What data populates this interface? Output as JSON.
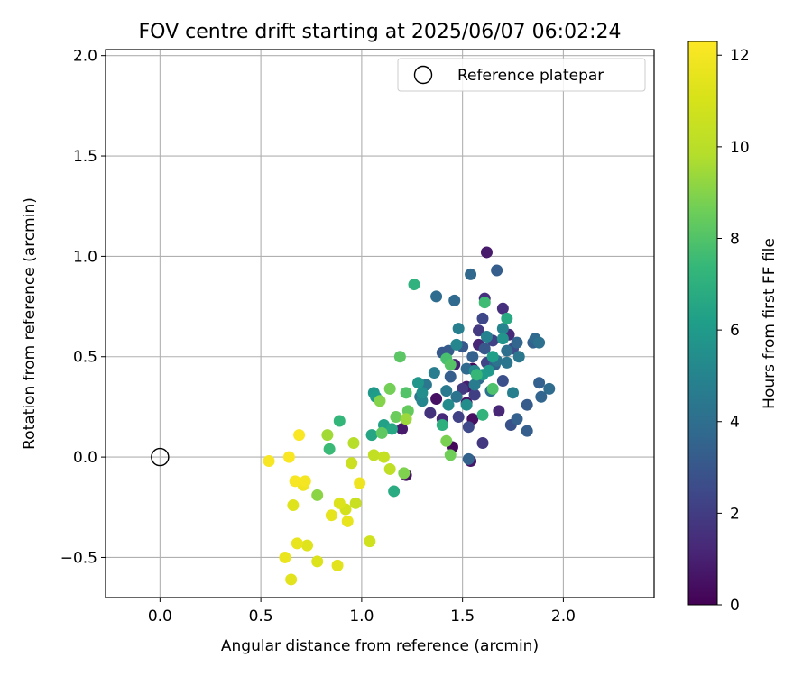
{
  "chart_data": {
    "type": "scatter",
    "title": "FOV centre drift starting at 2025/06/07 06:02:24",
    "xlabel": "Angular distance from reference (arcmin)",
    "ylabel": "Rotation from reference (arcmin)",
    "xlim": [
      -0.27,
      2.45
    ],
    "ylim": [
      -0.7,
      2.03
    ],
    "x_ticks": [
      0.0,
      0.5,
      1.0,
      1.5,
      2.0
    ],
    "x_tick_labels": [
      "0.0",
      "0.5",
      "1.0",
      "1.5",
      "2.0"
    ],
    "y_ticks": [
      -0.5,
      0.0,
      0.5,
      1.0,
      1.5,
      2.0
    ],
    "y_tick_labels": [
      "−0.5",
      "0.0",
      "0.5",
      "1.0",
      "1.5",
      "2.0"
    ],
    "grid": true,
    "colormap": "viridis",
    "colorbar": {
      "label": "Hours from first FF file",
      "range": [
        0,
        12.3
      ],
      "ticks": [
        0,
        2,
        4,
        6,
        8,
        10,
        12
      ],
      "tick_labels": [
        "0",
        "2",
        "4",
        "6",
        "8",
        "10",
        "12"
      ]
    },
    "legend": {
      "position": "top-right",
      "entries": [
        "Reference platepar"
      ]
    },
    "reference_point": {
      "x": 0.0,
      "y": 0.0
    },
    "points": [
      {
        "x": 1.62,
        "y": 1.02,
        "h": 0.8
      },
      {
        "x": 1.61,
        "y": 0.79,
        "h": 1.5
      },
      {
        "x": 1.58,
        "y": 0.56,
        "h": 1.2
      },
      {
        "x": 1.55,
        "y": 0.44,
        "h": 0.3
      },
      {
        "x": 1.45,
        "y": 0.05,
        "h": 0.2
      },
      {
        "x": 1.37,
        "y": 0.29,
        "h": 0.5
      },
      {
        "x": 1.52,
        "y": 0.27,
        "h": 0.6
      },
      {
        "x": 1.46,
        "y": 0.46,
        "h": 1.0
      },
      {
        "x": 1.7,
        "y": 0.74,
        "h": 1.5
      },
      {
        "x": 1.73,
        "y": 0.61,
        "h": 1.3
      },
      {
        "x": 1.52,
        "y": 0.35,
        "h": 0.9
      },
      {
        "x": 1.55,
        "y": 0.19,
        "h": 0.5
      },
      {
        "x": 1.54,
        "y": -0.02,
        "h": 0.7
      },
      {
        "x": 1.2,
        "y": 0.14,
        "h": 0.8
      },
      {
        "x": 1.22,
        "y": -0.09,
        "h": 0.4
      },
      {
        "x": 1.68,
        "y": 0.23,
        "h": 1.2
      },
      {
        "x": 1.6,
        "y": 0.07,
        "h": 1.8
      },
      {
        "x": 1.34,
        "y": 0.22,
        "h": 1.6
      },
      {
        "x": 1.4,
        "y": 0.19,
        "h": 1.3
      },
      {
        "x": 1.5,
        "y": 0.34,
        "h": 1.9
      },
      {
        "x": 1.58,
        "y": 0.63,
        "h": 1.9
      },
      {
        "x": 1.65,
        "y": 0.58,
        "h": 2.2
      },
      {
        "x": 1.6,
        "y": 0.69,
        "h": 2.4
      },
      {
        "x": 1.48,
        "y": 0.2,
        "h": 2.2
      },
      {
        "x": 1.56,
        "y": 0.31,
        "h": 2.1
      },
      {
        "x": 1.62,
        "y": 0.47,
        "h": 2.3
      },
      {
        "x": 1.75,
        "y": 0.54,
        "h": 2.6
      },
      {
        "x": 1.7,
        "y": 0.38,
        "h": 2.7
      },
      {
        "x": 1.53,
        "y": 0.15,
        "h": 2.5
      },
      {
        "x": 1.74,
        "y": 0.16,
        "h": 2.8
      },
      {
        "x": 1.67,
        "y": 0.93,
        "h": 3.3
      },
      {
        "x": 1.54,
        "y": 0.91,
        "h": 3.7
      },
      {
        "x": 1.37,
        "y": 0.8,
        "h": 3.9
      },
      {
        "x": 1.46,
        "y": 0.78,
        "h": 3.8
      },
      {
        "x": 1.43,
        "y": 0.53,
        "h": 3.2
      },
      {
        "x": 1.5,
        "y": 0.55,
        "h": 3.1
      },
      {
        "x": 1.55,
        "y": 0.5,
        "h": 3.4
      },
      {
        "x": 1.61,
        "y": 0.54,
        "h": 3.0
      },
      {
        "x": 1.66,
        "y": 0.46,
        "h": 3.5
      },
      {
        "x": 1.77,
        "y": 0.57,
        "h": 3.6
      },
      {
        "x": 1.85,
        "y": 0.57,
        "h": 3.4
      },
      {
        "x": 1.86,
        "y": 0.59,
        "h": 3.8
      },
      {
        "x": 1.88,
        "y": 0.57,
        "h": 4.1
      },
      {
        "x": 1.88,
        "y": 0.37,
        "h": 3.4
      },
      {
        "x": 1.93,
        "y": 0.34,
        "h": 3.9
      },
      {
        "x": 1.89,
        "y": 0.3,
        "h": 3.6
      },
      {
        "x": 1.82,
        "y": 0.26,
        "h": 3.2
      },
      {
        "x": 1.77,
        "y": 0.19,
        "h": 3.4
      },
      {
        "x": 1.82,
        "y": 0.13,
        "h": 3.3
      },
      {
        "x": 1.53,
        "y": -0.01,
        "h": 3.5
      },
      {
        "x": 1.44,
        "y": 0.4,
        "h": 3.3
      },
      {
        "x": 1.4,
        "y": 0.52,
        "h": 3.1
      },
      {
        "x": 1.52,
        "y": 0.44,
        "h": 3.8
      },
      {
        "x": 1.58,
        "y": 0.39,
        "h": 3.9
      },
      {
        "x": 1.67,
        "y": 0.48,
        "h": 4.2
      },
      {
        "x": 1.72,
        "y": 0.53,
        "h": 4.0
      },
      {
        "x": 1.78,
        "y": 0.5,
        "h": 4.4
      },
      {
        "x": 1.72,
        "y": 0.47,
        "h": 4.3
      },
      {
        "x": 1.64,
        "y": 0.33,
        "h": 4.1
      },
      {
        "x": 1.56,
        "y": 0.36,
        "h": 4.6
      },
      {
        "x": 1.47,
        "y": 0.3,
        "h": 4.2
      },
      {
        "x": 1.42,
        "y": 0.33,
        "h": 4.5
      },
      {
        "x": 1.36,
        "y": 0.42,
        "h": 4.7
      },
      {
        "x": 1.32,
        "y": 0.36,
        "h": 4.4
      },
      {
        "x": 1.29,
        "y": 0.3,
        "h": 4.3
      },
      {
        "x": 1.48,
        "y": 0.64,
        "h": 4.8
      },
      {
        "x": 1.47,
        "y": 0.56,
        "h": 5.1
      },
      {
        "x": 1.62,
        "y": 0.6,
        "h": 4.9
      },
      {
        "x": 1.7,
        "y": 0.64,
        "h": 5.0
      },
      {
        "x": 1.75,
        "y": 0.32,
        "h": 4.8
      },
      {
        "x": 1.56,
        "y": 0.43,
        "h": 5.2
      },
      {
        "x": 1.52,
        "y": 0.26,
        "h": 5.4
      },
      {
        "x": 1.43,
        "y": 0.26,
        "h": 5.3
      },
      {
        "x": 1.3,
        "y": 0.28,
        "h": 5.1
      },
      {
        "x": 1.3,
        "y": 0.32,
        "h": 5.5
      },
      {
        "x": 1.28,
        "y": 0.37,
        "h": 5.8
      },
      {
        "x": 1.7,
        "y": 0.59,
        "h": 5.7
      },
      {
        "x": 1.63,
        "y": 0.43,
        "h": 5.9
      },
      {
        "x": 1.6,
        "y": 0.41,
        "h": 6.0
      },
      {
        "x": 1.65,
        "y": 0.5,
        "h": 6.2
      },
      {
        "x": 1.72,
        "y": 0.69,
        "h": 6.7
      },
      {
        "x": 1.06,
        "y": 0.32,
        "h": 5.9
      },
      {
        "x": 1.07,
        "y": 0.3,
        "h": 6.1
      },
      {
        "x": 1.05,
        "y": 0.11,
        "h": 6.5
      },
      {
        "x": 1.11,
        "y": 0.16,
        "h": 6.3
      },
      {
        "x": 1.15,
        "y": 0.14,
        "h": 6.6
      },
      {
        "x": 1.16,
        "y": -0.17,
        "h": 6.8
      },
      {
        "x": 1.26,
        "y": 0.86,
        "h": 7.1
      },
      {
        "x": 1.4,
        "y": 0.16,
        "h": 7.0
      },
      {
        "x": 1.6,
        "y": 0.21,
        "h": 7.2
      },
      {
        "x": 1.57,
        "y": 0.41,
        "h": 7.4
      },
      {
        "x": 1.61,
        "y": 0.77,
        "h": 7.6
      },
      {
        "x": 0.89,
        "y": 0.18,
        "h": 7.3
      },
      {
        "x": 0.84,
        "y": 0.04,
        "h": 7.5
      },
      {
        "x": 1.42,
        "y": 0.49,
        "h": 7.8
      },
      {
        "x": 1.65,
        "y": 0.34,
        "h": 7.9
      },
      {
        "x": 1.22,
        "y": 0.32,
        "h": 8.0
      },
      {
        "x": 1.19,
        "y": 0.5,
        "h": 8.2
      },
      {
        "x": 1.44,
        "y": 0.46,
        "h": 8.1
      },
      {
        "x": 1.17,
        "y": 0.2,
        "h": 8.5
      },
      {
        "x": 1.23,
        "y": 0.23,
        "h": 8.4
      },
      {
        "x": 1.44,
        "y": 0.01,
        "h": 8.6
      },
      {
        "x": 1.42,
        "y": 0.08,
        "h": 8.8
      },
      {
        "x": 1.1,
        "y": 0.12,
        "h": 8.3
      },
      {
        "x": 1.14,
        "y": 0.34,
        "h": 8.7
      },
      {
        "x": 1.09,
        "y": 0.28,
        "h": 9.0
      },
      {
        "x": 1.21,
        "y": -0.08,
        "h": 8.9
      },
      {
        "x": 0.78,
        "y": -0.19,
        "h": 9.1
      },
      {
        "x": 1.22,
        "y": 0.19,
        "h": 9.4
      },
      {
        "x": 0.83,
        "y": 0.11,
        "h": 9.5
      },
      {
        "x": 0.96,
        "y": 0.07,
        "h": 9.9
      },
      {
        "x": 1.06,
        "y": 0.01,
        "h": 10.3
      },
      {
        "x": 1.11,
        "y": 0.0,
        "h": 10.4
      },
      {
        "x": 1.14,
        "y": -0.06,
        "h": 10.2
      },
      {
        "x": 0.95,
        "y": -0.03,
        "h": 10.6
      },
      {
        "x": 0.97,
        "y": -0.23,
        "h": 10.5
      },
      {
        "x": 1.04,
        "y": -0.42,
        "h": 10.8
      },
      {
        "x": 0.92,
        "y": -0.26,
        "h": 10.9
      },
      {
        "x": 0.89,
        "y": -0.23,
        "h": 11.2
      },
      {
        "x": 0.93,
        "y": -0.32,
        "h": 11.6
      },
      {
        "x": 0.85,
        "y": -0.29,
        "h": 11.5
      },
      {
        "x": 0.88,
        "y": -0.54,
        "h": 11.4
      },
      {
        "x": 0.78,
        "y": -0.52,
        "h": 11.2
      },
      {
        "x": 0.73,
        "y": -0.44,
        "h": 11.3
      },
      {
        "x": 0.68,
        "y": -0.43,
        "h": 11.6
      },
      {
        "x": 0.62,
        "y": -0.5,
        "h": 11.7
      },
      {
        "x": 0.65,
        "y": -0.61,
        "h": 11.4
      },
      {
        "x": 0.71,
        "y": -0.14,
        "h": 11.8
      },
      {
        "x": 0.72,
        "y": -0.12,
        "h": 12.0
      },
      {
        "x": 0.67,
        "y": -0.12,
        "h": 12.1
      },
      {
        "x": 0.66,
        "y": -0.24,
        "h": 11.3
      },
      {
        "x": 0.64,
        "y": 0.0,
        "h": 12.2
      },
      {
        "x": 0.54,
        "y": -0.02,
        "h": 12.1
      },
      {
        "x": 0.69,
        "y": 0.11,
        "h": 12.2
      },
      {
        "x": 0.99,
        "y": -0.13,
        "h": 11.8
      }
    ]
  }
}
